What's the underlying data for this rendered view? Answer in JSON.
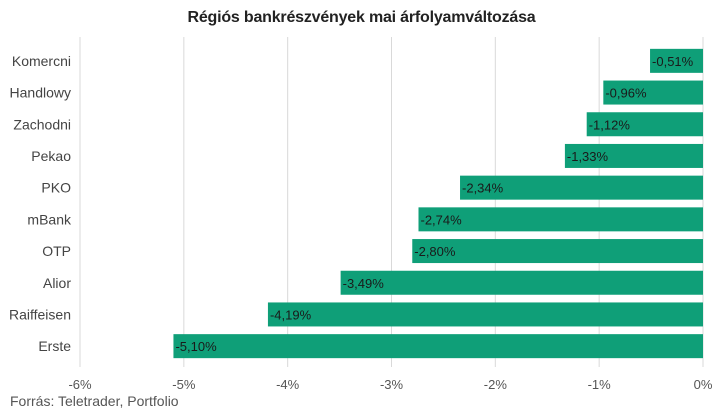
{
  "chart_data": {
    "type": "bar",
    "orientation": "horizontal",
    "title": "Régiós bankrészvények mai árfolyamváltozása",
    "categories": [
      "Komercni",
      "Handlowy",
      "Zachodni",
      "Pekao",
      "PKO",
      "mBank",
      "OTP",
      "Alior",
      "Raiffeisen",
      "Erste"
    ],
    "values": [
      -0.51,
      -0.96,
      -1.12,
      -1.33,
      -2.34,
      -2.74,
      -2.8,
      -3.49,
      -4.19,
      -5.1
    ],
    "data_labels": [
      "-0,51%",
      "-0,96%",
      "-1,12%",
      "-1,33%",
      "-2,34%",
      "-2,74%",
      "-2,80%",
      "-3,49%",
      "-4,19%",
      "-5,10%"
    ],
    "xlim": [
      -6,
      0
    ],
    "x_ticks": [
      -6,
      -5,
      -4,
      -3,
      -2,
      -1,
      0
    ],
    "x_tick_labels": [
      "-6%",
      "-5%",
      "-4%",
      "-3%",
      "-2%",
      "-1%",
      "0%"
    ],
    "xlabel": "",
    "ylabel": "",
    "grid": "vertical",
    "bar_color": "#0f9f78",
    "grid_color": "#d9d9d9"
  },
  "source_note": "Forrás: Teletrader, Portfolio"
}
